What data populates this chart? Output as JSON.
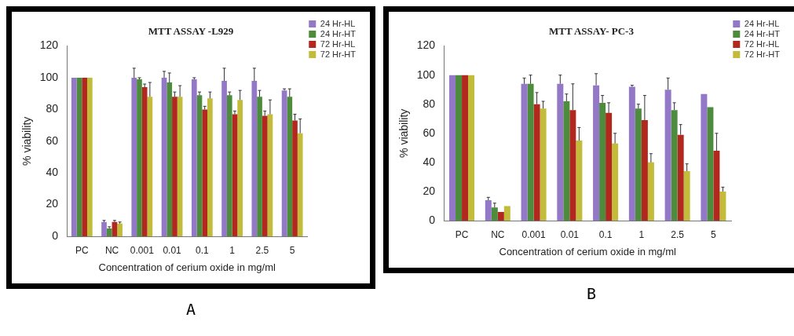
{
  "chart_data": [
    {
      "type": "bar",
      "title": "MTT ASSAY -L929",
      "xlabel": "Concentration of cerium oxide in mg/ml",
      "ylabel": "% viability",
      "categories": [
        "PC",
        "NC",
        "0.001",
        "0.01",
        "0.1",
        "1",
        "2.5",
        "5"
      ],
      "ylim": [
        0,
        120
      ],
      "yticks": [
        0,
        20,
        40,
        60,
        80,
        100,
        120
      ],
      "grid": false,
      "legend": "top right",
      "annotations": [
        "A"
      ],
      "series": [
        {
          "name": "24 Hr-HL",
          "color": "#9478c8",
          "values": [
            100,
            9,
            100,
            100,
            99,
            98,
            98,
            92
          ],
          "errors": [
            null,
            [
              9,
              10
            ],
            [
              100,
              106
            ],
            [
              100,
              104
            ],
            [
              99,
              100
            ],
            [
              98,
              106
            ],
            [
              98,
              106
            ],
            [
              92,
              93
            ]
          ]
        },
        {
          "name": "24 Hr-HT",
          "color": "#4c8c3c",
          "values": [
            100,
            5,
            99,
            97,
            89,
            89,
            88,
            88
          ],
          "errors": [
            null,
            [
              5,
              6
            ],
            [
              99,
              100
            ],
            [
              97,
              103
            ],
            [
              89,
              91
            ],
            [
              89,
              91
            ],
            [
              88,
              92
            ],
            [
              88,
              93
            ]
          ]
        },
        {
          "name": "72 Hr-HL",
          "color": "#b3281e",
          "values": [
            100,
            9,
            94,
            88,
            80,
            77,
            76,
            73
          ],
          "errors": [
            null,
            [
              9,
              10
            ],
            [
              94,
              96
            ],
            [
              88,
              91
            ],
            [
              80,
              82
            ],
            [
              77,
              79
            ],
            [
              76,
              79
            ],
            [
              73,
              77
            ]
          ]
        },
        {
          "name": "72 Hr-HT",
          "color": "#c2bc3a",
          "values": [
            100,
            8,
            88,
            88,
            87,
            86,
            77,
            65
          ],
          "errors": [
            null,
            [
              8,
              9
            ],
            [
              88,
              97
            ],
            [
              88,
              95
            ],
            [
              87,
              91
            ],
            [
              86,
              92
            ],
            [
              77,
              86
            ],
            [
              65,
              74
            ]
          ]
        }
      ]
    },
    {
      "type": "bar",
      "title": "MTT ASSAY- PC-3",
      "xlabel": "Concentration of cerium oxide in mg/ml",
      "ylabel": "% viability",
      "categories": [
        "PC",
        "NC",
        "0.001",
        "0.01",
        "0.1",
        "1",
        "2.5",
        "5"
      ],
      "ylim": [
        0,
        120
      ],
      "yticks": [
        0,
        20,
        40,
        60,
        80,
        100,
        120
      ],
      "grid": false,
      "legend": "top right",
      "annotations": [
        "B"
      ],
      "series": [
        {
          "name": "24 Hr-HL",
          "color": "#9478c8",
          "values": [
            100,
            14,
            94,
            94,
            93,
            92,
            90,
            87
          ],
          "errors": [
            null,
            [
              14,
              16
            ],
            [
              94,
              98
            ],
            [
              94,
              100
            ],
            [
              93,
              101
            ],
            [
              92,
              93
            ],
            [
              90,
              98
            ],
            null
          ]
        },
        {
          "name": "24 Hr-HT",
          "color": "#4c8c3c",
          "values": [
            100,
            9,
            94,
            82,
            81,
            77,
            76,
            78
          ],
          "errors": [
            null,
            [
              9,
              12
            ],
            [
              94,
              100
            ],
            [
              82,
              87
            ],
            [
              81,
              86
            ],
            [
              77,
              80
            ],
            [
              76,
              81
            ],
            null
          ]
        },
        {
          "name": "72 Hr-HL",
          "color": "#b3281e",
          "values": [
            100,
            6,
            80,
            76,
            74,
            69,
            59,
            48
          ],
          "errors": [
            null,
            null,
            [
              80,
              88
            ],
            [
              76,
              94
            ],
            [
              74,
              81
            ],
            [
              69,
              86
            ],
            [
              59,
              66
            ],
            [
              48,
              60
            ]
          ]
        },
        {
          "name": "72 Hr-HT",
          "color": "#c2bc3a",
          "values": [
            100,
            10,
            77,
            55,
            53,
            40,
            34,
            20
          ],
          "errors": [
            null,
            null,
            [
              77,
              82
            ],
            [
              55,
              64
            ],
            [
              53,
              60
            ],
            [
              40,
              46
            ],
            [
              34,
              39
            ],
            [
              20,
              23
            ]
          ]
        }
      ]
    }
  ]
}
